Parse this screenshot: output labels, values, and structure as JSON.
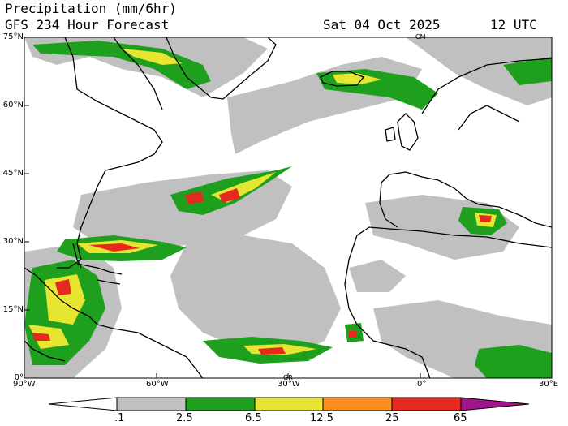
{
  "header": {
    "title": "Precipitation (mm/6hr)",
    "subtitle": "GFS 234 Hour Forecast",
    "valid_date": "Sat 04 Oct 2025",
    "valid_hour": "12 UTC"
  },
  "map": {
    "lat_labels": [
      "75°N",
      "60°N",
      "45°N",
      "30°N",
      "15°N",
      "0°"
    ],
    "lon_labels": [
      "90°W",
      "60°W",
      "30°W",
      "0°",
      "30°E"
    ],
    "marker_labels": [
      "CM",
      "GR"
    ]
  },
  "legend": {
    "thresholds": [
      ".1",
      "2.5",
      "6.5",
      "12.5",
      "25",
      "65"
    ],
    "colors": {
      "none": "#ffffff",
      "light": "#c0c0c0",
      "moderate": "#1ea01e",
      "heavy": "#e6e632",
      "very_heavy": "#ff8c1e",
      "intense": "#e6281e",
      "extreme": "#a0148c"
    }
  }
}
